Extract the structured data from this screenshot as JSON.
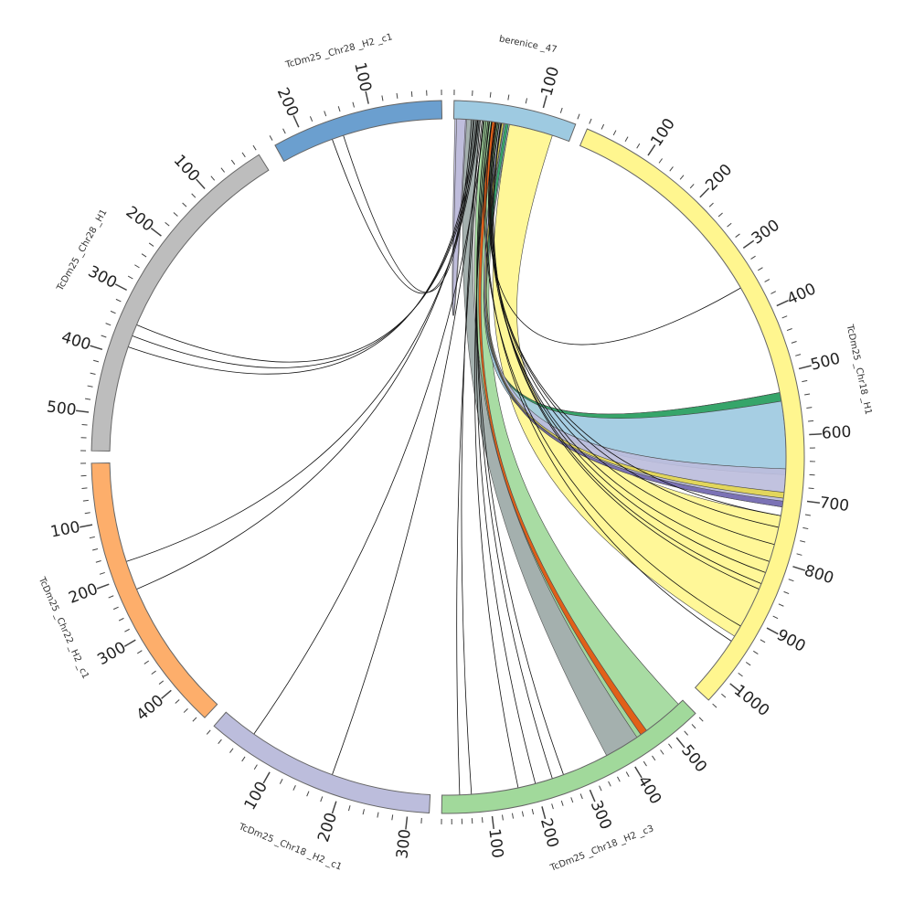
{
  "diagram": {
    "segments": [
      {
        "id": "berenice_47",
        "label": "berenice _47",
        "color": "#9ecae1",
        "ticks": [
          {
            "value": 100,
            "label": "100"
          }
        ]
      },
      {
        "id": "chr18_h1",
        "label": "TcDm25 _Chr18 _H1",
        "color": "#fff68f",
        "ticks": [
          {
            "value": 100,
            "label": "100"
          },
          {
            "value": 200,
            "label": "200"
          },
          {
            "value": 300,
            "label": "300"
          },
          {
            "value": 400,
            "label": "400"
          },
          {
            "value": 500,
            "label": "500"
          },
          {
            "value": 600,
            "label": "600"
          },
          {
            "value": 700,
            "label": "700"
          },
          {
            "value": 800,
            "label": "800"
          },
          {
            "value": 900,
            "label": "900"
          },
          {
            "value": 1000,
            "label": "1000"
          }
        ]
      },
      {
        "id": "chr18_h2_c3",
        "label": "TcDm25 _Chr18 _H2 _c3",
        "color": "#a1d99b",
        "ticks": [
          {
            "value": 100,
            "label": "100"
          },
          {
            "value": 200,
            "label": "200"
          },
          {
            "value": 300,
            "label": "300"
          },
          {
            "value": 400,
            "label": "400"
          },
          {
            "value": 500,
            "label": "500"
          }
        ]
      },
      {
        "id": "chr18_h2_c1",
        "label": "TcDm25 _Chr18 _H2 _c1",
        "color": "#bcbddc",
        "ticks": [
          {
            "value": 100,
            "label": "100"
          },
          {
            "value": 200,
            "label": "200"
          },
          {
            "value": 300,
            "label": "300"
          }
        ]
      },
      {
        "id": "chr22_h2_c1",
        "label": "TcDm25 _Chr22 _H2 _c1",
        "color": "#fdae6b",
        "ticks": [
          {
            "value": 100,
            "label": "100"
          },
          {
            "value": 200,
            "label": "200"
          },
          {
            "value": 300,
            "label": "300"
          },
          {
            "value": 400,
            "label": "400"
          }
        ]
      },
      {
        "id": "chr28_h1",
        "label": "TcDm25 _Chr28 _H1",
        "color": "#bdbdbd",
        "ticks": [
          {
            "value": 100,
            "label": "100"
          },
          {
            "value": 200,
            "label": "200"
          },
          {
            "value": 300,
            "label": "300"
          },
          {
            "value": 400,
            "label": "400"
          },
          {
            "value": 500,
            "label": "500"
          }
        ]
      },
      {
        "id": "chr28_h2_c1",
        "label": "TcDm25 _Chr28 _H2 _c1",
        "color": "#6b9fcf",
        "ticks": [
          {
            "value": 100,
            "label": "100"
          },
          {
            "value": 200,
            "label": "200"
          }
        ]
      }
    ],
    "ribbons": [
      {
        "color": "#fff68f",
        "source": "berenice_47",
        "target": "chr18_h1"
      },
      {
        "color": "#a1d99b",
        "source": "berenice_47",
        "target": "chr18_h2_c3"
      },
      {
        "color": "#e6550d",
        "source": "berenice_47",
        "target": "chr18_h2_c3"
      },
      {
        "color": "#9ecae1",
        "source": "berenice_47",
        "target": "chr18_h1"
      },
      {
        "color": "#2ca25f",
        "source": "berenice_47",
        "target": "chr18_h1"
      },
      {
        "color": "#bcbddc",
        "source": "berenice_47",
        "target": "chr18_h1"
      },
      {
        "color": "#756bb1",
        "source": "berenice_47",
        "target": "chr18_h1"
      },
      {
        "color": "#e5d84f",
        "source": "berenice_47",
        "target": "chr18_h1"
      }
    ]
  }
}
